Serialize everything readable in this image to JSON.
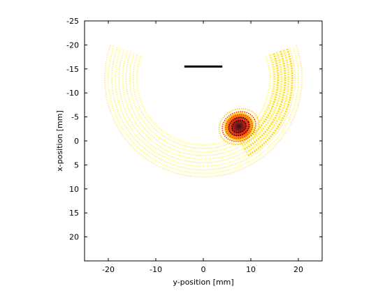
{
  "chart_data": {
    "type": "heatmap",
    "xlabel": "y-position [mm]",
    "ylabel": "x-position [mm]",
    "xlim": [
      -25,
      25
    ],
    "ylim": [
      25,
      -25
    ],
    "y_axis_reversed": true,
    "x_ticks": [
      -20,
      -10,
      0,
      10,
      20
    ],
    "x_tick_labels": [
      "-20",
      "-10",
      "0",
      "10",
      "20"
    ],
    "y_ticks": [
      -25,
      -20,
      -15,
      -10,
      -5,
      0,
      5,
      10,
      15,
      20
    ],
    "y_tick_labels": [
      "-25",
      "-20",
      "-15",
      "-10",
      "-5",
      "0",
      "5",
      "10",
      "15",
      "20"
    ],
    "grid": false,
    "colormap": "hot",
    "colors": {
      "background": "#ffffff",
      "frame": "#000000",
      "wave_light": "#ffff66",
      "wave_mid": "#ff3300",
      "wave_dark": "#000000",
      "transducer": "#000000"
    },
    "wavefront": {
      "center": [
        0,
        -13
      ],
      "radius_start": 14,
      "ring_spacing": 0.75,
      "ring_count": 10,
      "arc_angle_range_deg": [
        -160,
        -20
      ]
    },
    "hotspot": {
      "center_y_position": 7.5,
      "center_x_position": -3,
      "core_radius": 1.5
    },
    "transducer_segment": {
      "y_position_range": [
        -4,
        4
      ],
      "x_position": -15.5
    }
  }
}
